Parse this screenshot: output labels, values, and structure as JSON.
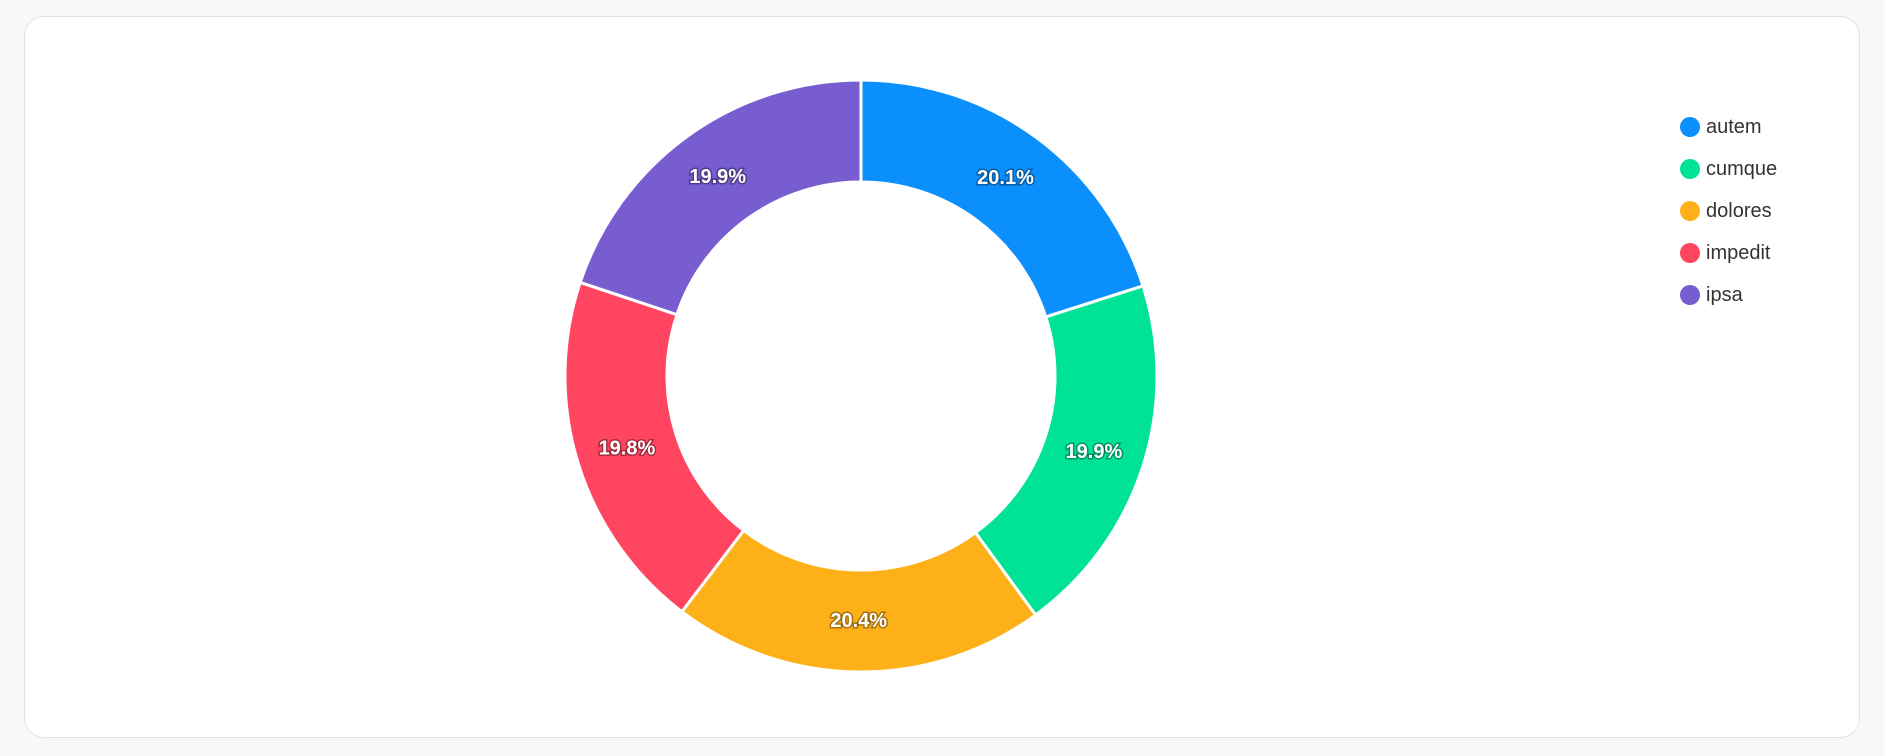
{
  "chart_data": {
    "type": "pie",
    "variant": "donut",
    "categories": [
      "autem",
      "cumque",
      "dolores",
      "impedit",
      "ipsa"
    ],
    "values": [
      20.1,
      19.9,
      20.4,
      19.8,
      19.9
    ],
    "labels": [
      "20.1%",
      "19.9%",
      "20.4%",
      "19.8%",
      "19.9%"
    ],
    "colors": [
      "#0a8ffc",
      "#00e396",
      "#feb019",
      "#ff4560",
      "#775dd0"
    ],
    "legend": "top-right",
    "title": ""
  }
}
